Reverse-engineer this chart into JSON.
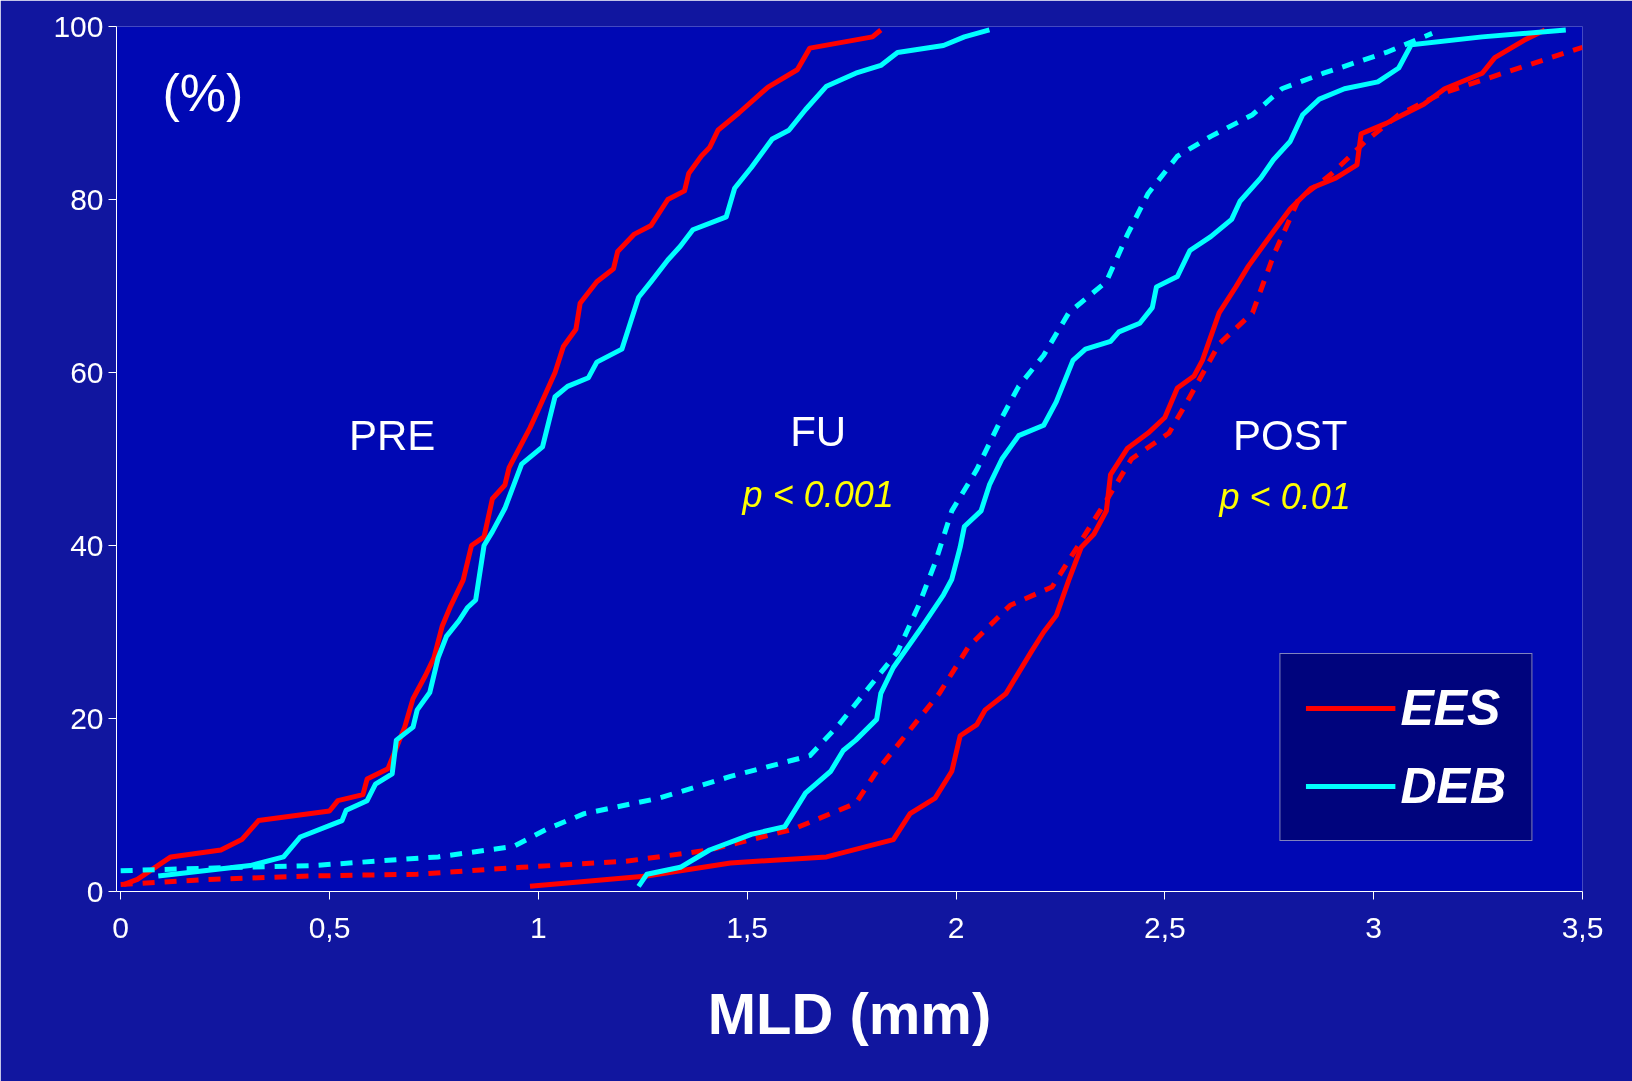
{
  "chart_data": {
    "type": "line",
    "xlabel": "MLD (mm)",
    "ylabel": "(%)",
    "xlim": [
      -0.01,
      3.5
    ],
    "ylim": [
      0,
      100
    ],
    "xticks": [
      0,
      {
        "value": 0.5,
        "label": "0,5"
      },
      1,
      {
        "value": 1.5,
        "label": "1,5"
      },
      2,
      {
        "value": 2.5,
        "label": "2,5"
      },
      3,
      {
        "value": 3.5,
        "label": "3,5"
      }
    ],
    "yticks": [
      0,
      20,
      40,
      60,
      80,
      100
    ],
    "grid": false,
    "legend": "bottom right",
    "marker": "none",
    "annotations": [
      "PRE",
      "FU",
      "p < 0.001",
      "POST",
      "p <  0.01"
    ],
    "series": [
      {
        "name": "EES",
        "color": "#ff0000",
        "line_style": "solid",
        "x": [
          0.007,
          0.04,
          0.12,
          0.24,
          0.29,
          0.33,
          0.5,
          0.52,
          0.58,
          0.59,
          0.64,
          0.68,
          0.7,
          0.73,
          0.75,
          0.77,
          0.79,
          0.82,
          0.84,
          0.87,
          0.89,
          0.92,
          0.93,
          0.98,
          1.0,
          1.04,
          1.06,
          1.09,
          1.1,
          1.14,
          1.18,
          1.19,
          1.23,
          1.27,
          1.31,
          1.35,
          1.36,
          1.39,
          1.41,
          1.43,
          1.48,
          1.55,
          1.62,
          1.65,
          1.8,
          1.82
        ],
        "values": [
          0.8,
          1.4,
          4,
          4.8,
          6,
          8.2,
          9.3,
          10.5,
          11.2,
          13,
          14.2,
          19,
          22.3,
          25,
          27,
          30.7,
          33,
          36,
          40,
          41,
          45.4,
          47,
          49,
          53.6,
          55.7,
          60,
          63,
          65,
          68,
          70.5,
          72,
          74,
          76,
          77,
          80,
          81,
          83,
          85,
          86,
          88,
          90,
          93,
          95,
          97.5,
          98.8,
          99.6
        ]
      },
      {
        "name": "DEB",
        "color": "#00ffff",
        "line_style": "solid",
        "x": [
          0.09,
          0.31,
          0.39,
          0.43,
          0.53,
          0.54,
          0.59,
          0.61,
          0.65,
          0.66,
          0.7,
          0.71,
          0.74,
          0.76,
          0.78,
          0.81,
          0.83,
          0.85,
          0.87,
          0.89,
          0.92,
          0.96,
          1.01,
          1.04,
          1.07,
          1.12,
          1.14,
          1.2,
          1.22,
          1.24,
          1.27,
          1.31,
          1.34,
          1.37,
          1.45,
          1.47,
          1.51,
          1.56,
          1.6,
          1.64,
          1.69,
          1.76,
          1.82,
          1.86,
          1.97,
          2.02,
          2.08
        ],
        "values": [
          1.8,
          3,
          4,
          6.3,
          8.2,
          9.4,
          10.5,
          12.4,
          13.6,
          17.5,
          19,
          21,
          23,
          27,
          29.5,
          31.3,
          32.8,
          33.7,
          40,
          41.6,
          44.3,
          49.4,
          51.4,
          57.2,
          58.4,
          59.4,
          61.2,
          62.7,
          65.7,
          68.7,
          70.5,
          73,
          74.6,
          76.5,
          78,
          81.3,
          83.7,
          87,
          88,
          90.4,
          93.1,
          94.6,
          95.5,
          97,
          97.8,
          98.8,
          99.6
        ]
      },
      {
        "color": "#00ffff",
        "line_style": "dashed",
        "x": [
          0,
          0.21,
          0.46,
          0.76,
          0.94,
          1.02,
          1.11,
          1.29,
          1.46,
          1.65,
          1.72,
          1.79,
          1.86,
          1.91,
          1.95,
          1.99,
          2.05,
          2.11,
          2.15,
          2.21,
          2.27,
          2.36,
          2.41,
          2.46,
          2.53,
          2.61,
          2.71,
          2.78,
          2.88,
          3.03,
          3.14
        ],
        "values": [
          2.4,
          2.7,
          3,
          4,
          5.2,
          7.2,
          9,
          10.8,
          13.3,
          15.7,
          19.3,
          23.5,
          27.7,
          33,
          38,
          44,
          48.8,
          54.8,
          58.4,
          62,
          66.9,
          70.5,
          75.9,
          80.7,
          85,
          87.3,
          89.8,
          92.8,
          94.6,
          97,
          99.2
        ]
      },
      {
        "color": "#ff0000",
        "line_style": "dashed",
        "x": [
          0,
          0.21,
          0.46,
          0.71,
          0.96,
          1.21,
          1.41,
          1.61,
          1.76,
          1.81,
          1.89,
          1.96,
          2.03,
          2.13,
          2.23,
          2.29,
          2.36,
          2.42,
          2.51,
          2.56,
          2.63,
          2.71,
          2.76,
          2.82,
          2.9,
          2.98,
          3.06,
          3.16,
          3.31,
          3.5
        ],
        "values": [
          0.8,
          1.4,
          1.8,
          2,
          2.8,
          3.5,
          4.8,
          7.2,
          10.2,
          13.9,
          18.7,
          22.9,
          28.3,
          33.1,
          35.2,
          39.8,
          45.2,
          50,
          53,
          57.2,
          63.3,
          66.9,
          73.5,
          80,
          83,
          86.7,
          89.8,
          92.2,
          94.6,
          97.6
        ]
      },
      {
        "color": "#ff0000",
        "line_style": "solid",
        "x": [
          0.98,
          1.26,
          1.46,
          1.69,
          1.85,
          1.89,
          1.95,
          1.99,
          2.01,
          2.05,
          2.07,
          2.12,
          2.15,
          2.18,
          2.21,
          2.24,
          2.27,
          2.3,
          2.33,
          2.36,
          2.37,
          2.41,
          2.46,
          2.5,
          2.53,
          2.57,
          2.59,
          2.63,
          2.67,
          2.7,
          2.73,
          2.76,
          2.8,
          2.85,
          2.91,
          2.96,
          2.97,
          3.03,
          3.07,
          3.12,
          3.17,
          3.26,
          3.29,
          3.36,
          3.41
        ],
        "values": [
          0.6,
          1.8,
          3.3,
          4,
          6,
          9,
          10.8,
          13.9,
          18,
          19.3,
          21,
          22.9,
          25.3,
          27.7,
          30,
          31.9,
          36,
          39.8,
          41.3,
          44,
          48.2,
          51.2,
          53,
          54.8,
          58.2,
          59.6,
          61.4,
          66.9,
          69.9,
          72.3,
          74.3,
          76.3,
          78.9,
          81.3,
          82.5,
          84,
          87.6,
          88.8,
          89.8,
          91,
          92.8,
          94.6,
          96.4,
          98.4,
          99.6
        ]
      },
      {
        "color": "#00ffff",
        "line_style": "solid",
        "x": [
          1.24,
          1.26,
          1.34,
          1.41,
          1.51,
          1.59,
          1.64,
          1.7,
          1.73,
          1.76,
          1.81,
          1.82,
          1.85,
          1.92,
          1.97,
          1.99,
          2.01,
          2.02,
          2.06,
          2.08,
          2.11,
          2.15,
          2.21,
          2.24,
          2.28,
          2.31,
          2.37,
          2.39,
          2.44,
          2.47,
          2.48,
          2.53,
          2.56,
          2.61,
          2.66,
          2.68,
          2.73,
          2.76,
          2.8,
          2.83,
          2.87,
          2.93,
          3.01,
          3.06,
          3.09,
          3.26,
          3.46
        ],
        "values": [
          0.6,
          2,
          2.8,
          4.8,
          6.6,
          7.5,
          11.4,
          13.9,
          16.3,
          17.5,
          19.9,
          22.9,
          25.9,
          30.7,
          34.3,
          36.1,
          39.8,
          42.2,
          44,
          47,
          50,
          52.7,
          53.9,
          56.6,
          61.4,
          62.7,
          63.6,
          64.7,
          65.7,
          67.5,
          69.9,
          71.1,
          74.1,
          75.7,
          77.7,
          79.8,
          82.5,
          84.6,
          86.7,
          89.8,
          91.6,
          92.8,
          93.6,
          95.2,
          97.9,
          98.8,
          99.6
        ]
      }
    ]
  }
}
